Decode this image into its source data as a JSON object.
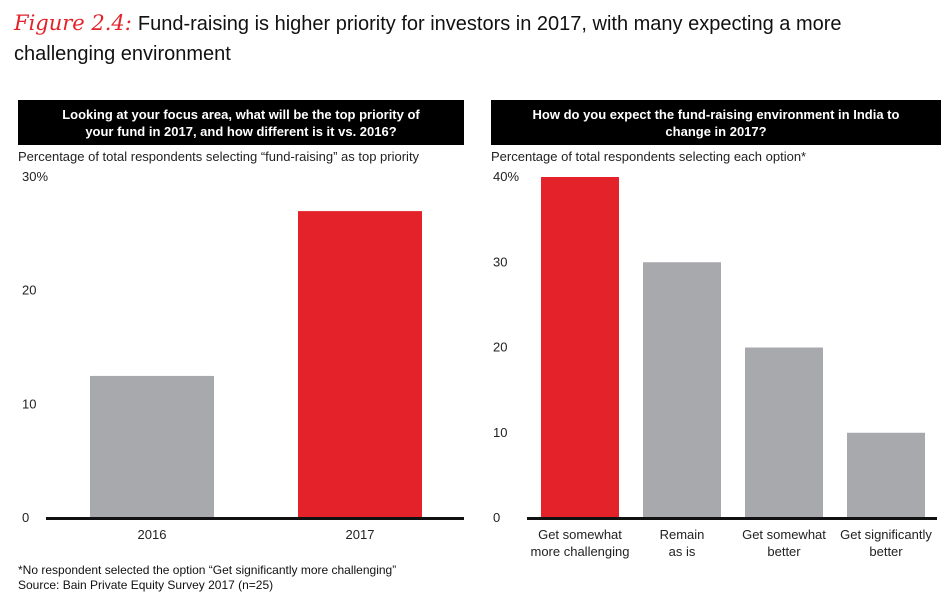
{
  "figure": {
    "label": "Figure 2.4:",
    "title": "Fund-raising is higher priority for investors in 2017, with many expecting a more challenging environment"
  },
  "footnotes": {
    "note": "*No respondent selected the option “Get significantly more challenging”",
    "source": "Source: Bain Private Equity Survey 2017 (n=25)"
  },
  "chart_data": [
    {
      "type": "bar",
      "title": "Looking at your focus area, what will be the top priority of your fund in 2017, and how different is it vs. 2016?",
      "subtitle": "Percentage of total respondents selecting “fund-raising” as top priority",
      "categories": [
        "2016",
        "2017"
      ],
      "values": [
        12.5,
        27
      ],
      "bar_colors": [
        "#a7a9ac",
        "#e32229"
      ],
      "ylim": [
        0,
        30
      ],
      "yticks": [
        "0",
        "10",
        "20",
        "30%"
      ],
      "grid": false
    },
    {
      "type": "bar",
      "title": "How do you expect the fund-raising environment in India to change in 2017?",
      "subtitle": "Percentage of total respondents selecting each option*",
      "categories": [
        "Get somewhat more challenging",
        "Remain as is",
        "Get somewhat better",
        "Get significantly better"
      ],
      "category_lines": [
        [
          "Get somewhat",
          "more challenging"
        ],
        [
          "Remain",
          "as is"
        ],
        [
          "Get somewhat",
          "better"
        ],
        [
          "Get significantly",
          "better"
        ]
      ],
      "values": [
        40,
        30,
        20,
        10
      ],
      "bar_colors": [
        "#e32229",
        "#a7a9ac",
        "#a7a9ac",
        "#a7a9ac"
      ],
      "ylim": [
        0,
        40
      ],
      "yticks": [
        "0",
        "10",
        "20",
        "30",
        "40%"
      ],
      "grid": false
    }
  ]
}
